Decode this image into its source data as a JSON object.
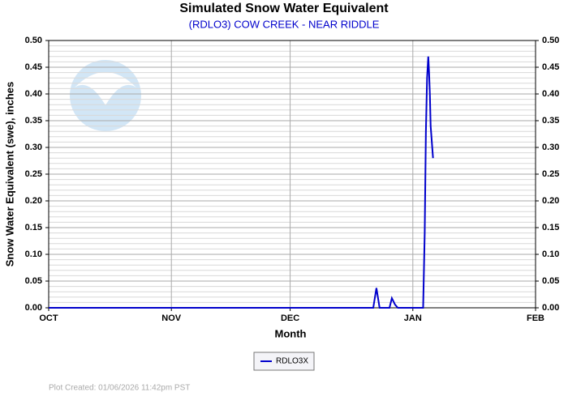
{
  "chart_data": {
    "type": "line",
    "title": "Simulated Snow Water Equivalent",
    "subtitle": "(RDLO3) COW CREEK - NEAR RIDDLE",
    "x_label": "Month",
    "y_label": "Snow Water Equivalent (swe),  inches",
    "note": "Plot Created: 01/06/2026 11:42pm PST",
    "x": [
      0,
      82.0,
      82.8,
      83.6,
      86.1,
      86.7,
      87.5,
      88.2,
      94.6,
      95.0,
      95.3,
      95.6,
      95.9,
      96.1,
      96.3,
      96.5,
      96.8,
      97.1
    ],
    "series": [
      {
        "name": "RDLO3X",
        "color": "#0000cc",
        "values": [
          0,
          0,
          0.037,
          0,
          0,
          0.018,
          0.006,
          0,
          0,
          0.14,
          0.33,
          0.43,
          0.47,
          0.44,
          0.4,
          0.34,
          0.31,
          0.28
        ]
      }
    ],
    "xlim": [
      0,
      123
    ],
    "xticks": [
      {
        "value": 0,
        "label": "OCT"
      },
      {
        "value": 31,
        "label": "NOV"
      },
      {
        "value": 61,
        "label": "DEC"
      },
      {
        "value": 92,
        "label": "JAN"
      },
      {
        "value": 123,
        "label": "FEB"
      }
    ],
    "ylim": [
      0,
      0.5
    ],
    "yticks": [
      {
        "value": 0,
        "label": "0.00"
      },
      {
        "value": 0.05,
        "label": "0.05"
      },
      {
        "value": 0.1,
        "label": "0.10"
      },
      {
        "value": 0.15,
        "label": "0.15"
      },
      {
        "value": 0.2,
        "label": "0.20"
      },
      {
        "value": 0.25,
        "label": "0.25"
      },
      {
        "value": 0.3,
        "label": "0.30"
      },
      {
        "value": 0.35,
        "label": "0.35"
      },
      {
        "value": 0.4,
        "label": "0.40"
      },
      {
        "value": 0.45,
        "label": "0.45"
      },
      {
        "value": 0.5,
        "label": "0.50"
      }
    ],
    "y2lim": [
      0,
      0.5
    ],
    "y2ticks": [
      {
        "value": 0,
        "label": "0.00"
      },
      {
        "value": 0.05,
        "label": "0.05"
      },
      {
        "value": 0.1,
        "label": "0.10"
      },
      {
        "value": 0.15,
        "label": "0.15"
      },
      {
        "value": 0.2,
        "label": "0.20"
      },
      {
        "value": 0.25,
        "label": "0.25"
      },
      {
        "value": 0.3,
        "label": "0.30"
      },
      {
        "value": 0.35,
        "label": "0.35"
      },
      {
        "value": 0.4,
        "label": "0.40"
      },
      {
        "value": 0.45,
        "label": "0.45"
      },
      {
        "value": 0.5,
        "label": "0.50"
      }
    ],
    "minor_yticks": [
      0.01,
      0.02,
      0.03,
      0.04,
      0.06,
      0.07,
      0.08,
      0.09,
      0.11,
      0.12,
      0.13,
      0.14,
      0.16,
      0.17,
      0.18,
      0.19,
      0.21,
      0.22,
      0.23,
      0.24,
      0.26,
      0.27,
      0.28,
      0.29,
      0.31,
      0.32,
      0.33,
      0.34,
      0.36,
      0.37,
      0.38,
      0.39,
      0.41,
      0.42,
      0.43,
      0.44,
      0.46,
      0.47,
      0.48,
      0.49
    ],
    "grid": true,
    "legend": "bottom"
  }
}
